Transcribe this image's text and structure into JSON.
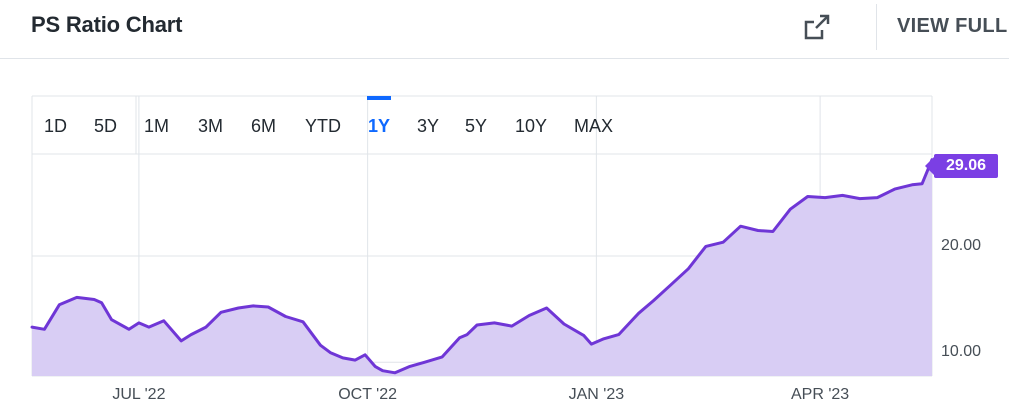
{
  "header": {
    "title": "PS Ratio Chart",
    "view_full_label": "VIEW FULL",
    "expand_icon": "expand-external-icon"
  },
  "range_tabs": {
    "items": [
      "1D",
      "5D",
      "1M",
      "3M",
      "6M",
      "YTD",
      "1Y",
      "3Y",
      "5Y",
      "10Y",
      "MAX"
    ],
    "selected": "1Y"
  },
  "colors": {
    "line": "#6f36d6",
    "fill": "#d8cdf4",
    "accent": "#0f69ff",
    "badge": "#7b3fe4",
    "grid": "#e0e4e9"
  },
  "chart_data": {
    "type": "area",
    "title": "",
    "xlabel": "",
    "ylabel": "",
    "ylim": [
      8.7,
      29.6
    ],
    "y_ticks": [
      "20.00",
      "10.00"
    ],
    "x_ticks": [
      "JUL '22",
      "OCT '22",
      "JAN '23",
      "APR '23"
    ],
    "last_value_label": "29.06",
    "grid": true,
    "series": [
      {
        "x": [
          "2022-05-19",
          "2022-05-24",
          "2022-05-30",
          "2022-06-06",
          "2022-06-13",
          "2022-06-16",
          "2022-06-20",
          "2022-06-27",
          "2022-07-01",
          "2022-07-05",
          "2022-07-11",
          "2022-07-18",
          "2022-07-22",
          "2022-07-28",
          "2022-08-03",
          "2022-08-10",
          "2022-08-16",
          "2022-08-22",
          "2022-08-29",
          "2022-09-05",
          "2022-09-12",
          "2022-09-16",
          "2022-09-21",
          "2022-09-26",
          "2022-09-30",
          "2022-10-04",
          "2022-10-07",
          "2022-10-12",
          "2022-10-18",
          "2022-10-24",
          "2022-10-31",
          "2022-11-07",
          "2022-11-10",
          "2022-11-14",
          "2022-11-21",
          "2022-11-28",
          "2022-12-05",
          "2022-12-12",
          "2022-12-19",
          "2022-12-27",
          "2022-12-30",
          "2023-01-04",
          "2023-01-10",
          "2023-01-18",
          "2023-01-24",
          "2023-01-31",
          "2023-02-07",
          "2023-02-14",
          "2023-02-21",
          "2023-02-28",
          "2023-03-07",
          "2023-03-13",
          "2023-03-20",
          "2023-03-27",
          "2023-04-03",
          "2023-04-10",
          "2023-04-17",
          "2023-04-24",
          "2023-05-01",
          "2023-05-08",
          "2023-05-12",
          "2023-05-16"
        ],
        "values": [
          13.3,
          13.1,
          15.4,
          16.1,
          15.9,
          15.6,
          14.0,
          13.1,
          13.7,
          13.3,
          13.9,
          12.0,
          12.6,
          13.3,
          14.7,
          15.1,
          15.3,
          15.2,
          14.3,
          13.8,
          11.6,
          10.9,
          10.4,
          10.2,
          10.7,
          9.6,
          9.2,
          9.0,
          9.6,
          10.0,
          10.5,
          12.3,
          12.6,
          13.5,
          13.7,
          13.4,
          14.4,
          15.1,
          13.6,
          12.5,
          11.7,
          12.2,
          12.6,
          14.6,
          15.8,
          17.3,
          18.8,
          20.9,
          21.3,
          22.8,
          22.4,
          22.3,
          24.4,
          25.6,
          25.5,
          25.7,
          25.4,
          25.5,
          26.3,
          26.7,
          26.8,
          29.06
        ]
      }
    ]
  }
}
